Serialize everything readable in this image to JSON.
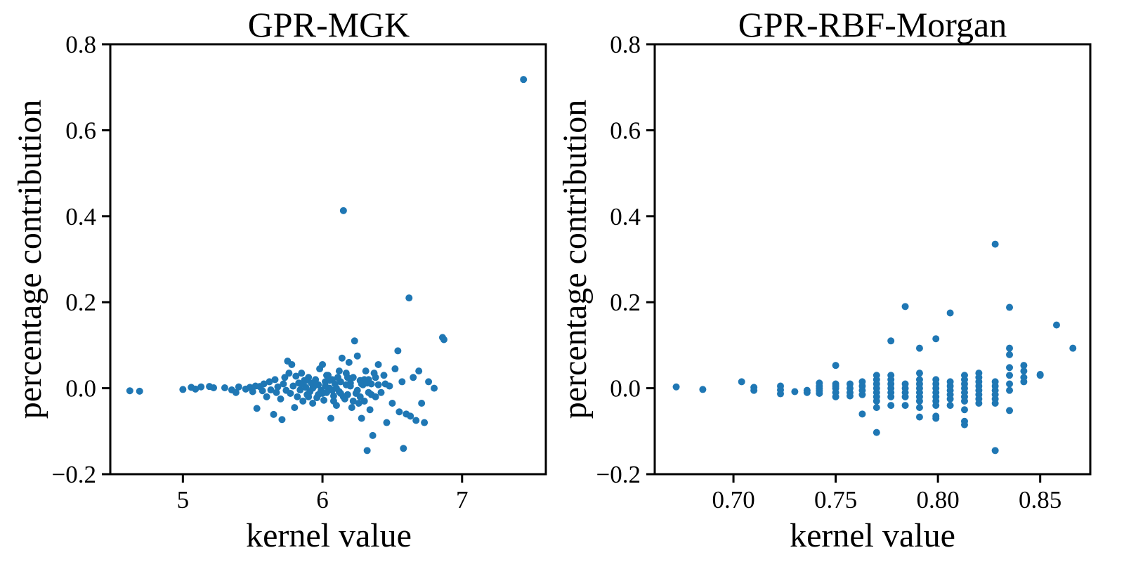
{
  "colors": {
    "marker": "#1f77b4",
    "axes": "#000000",
    "background": "#ffffff"
  },
  "chart_data": [
    {
      "type": "scatter",
      "title": "GPR-MGK",
      "xlabel": "kernel value",
      "ylabel": "percentage contribution",
      "xlim": [
        4.48,
        7.6
      ],
      "ylim": [
        -0.2,
        0.8
      ],
      "xticks": [
        5,
        6,
        7
      ],
      "xtick_labels": [
        "5",
        "6",
        "7"
      ],
      "yticks": [
        -0.2,
        0.0,
        0.2,
        0.4,
        0.6,
        0.8
      ],
      "ytick_labels": [
        "−0.2",
        "0.0",
        "0.2",
        "0.4",
        "0.6",
        "0.8"
      ],
      "grid": false,
      "points": [
        [
          4.62,
          -0.006
        ],
        [
          4.69,
          -0.007
        ],
        [
          5.0,
          -0.003
        ],
        [
          5.06,
          0.002
        ],
        [
          5.09,
          -0.002
        ],
        [
          5.13,
          0.003
        ],
        [
          5.19,
          0.004
        ],
        [
          5.22,
          0.001
        ],
        [
          5.3,
          0.001
        ],
        [
          5.35,
          -0.004
        ],
        [
          5.38,
          -0.01
        ],
        [
          5.4,
          0.003
        ],
        [
          5.45,
          -0.002
        ],
        [
          5.48,
          0.002
        ],
        [
          5.5,
          -0.008
        ],
        [
          5.52,
          0.005
        ],
        [
          5.53,
          -0.047
        ],
        [
          5.55,
          0.004
        ],
        [
          5.57,
          -0.006
        ],
        [
          5.58,
          0.01
        ],
        [
          5.6,
          -0.02
        ],
        [
          5.62,
          0.015
        ],
        [
          5.63,
          -0.004
        ],
        [
          5.65,
          -0.061
        ],
        [
          5.66,
          0.02
        ],
        [
          5.67,
          -0.01
        ],
        [
          5.68,
          0.003
        ],
        [
          5.7,
          -0.025
        ],
        [
          5.71,
          -0.073
        ],
        [
          5.72,
          0.01
        ],
        [
          5.73,
          0.025
        ],
        [
          5.74,
          -0.005
        ],
        [
          5.75,
          0.063
        ],
        [
          5.76,
          0.035
        ],
        [
          5.77,
          -0.012
        ],
        [
          5.78,
          0.055
        ],
        [
          5.79,
          0.005
        ],
        [
          5.8,
          -0.045
        ],
        [
          5.81,
          0.028
        ],
        [
          5.82,
          -0.02
        ],
        [
          5.83,
          0.012
        ],
        [
          5.84,
          -0.004
        ],
        [
          5.85,
          0.035
        ],
        [
          5.86,
          -0.03
        ],
        [
          5.87,
          0.018
        ],
        [
          5.88,
          0.002
        ],
        [
          5.89,
          -0.015
        ],
        [
          5.9,
          0.025
        ],
        [
          5.91,
          -0.008
        ],
        [
          5.92,
          0.012
        ],
        [
          5.93,
          -0.035
        ],
        [
          5.94,
          0.005
        ],
        [
          5.95,
          0.02
        ],
        [
          5.96,
          -0.022
        ],
        [
          5.97,
          0.008
        ],
        [
          5.98,
          0.045
        ],
        [
          5.99,
          -0.005
        ],
        [
          6.0,
          0.055
        ],
        [
          6.01,
          -0.028
        ],
        [
          6.02,
          0.015
        ],
        [
          6.03,
          -0.01
        ],
        [
          6.04,
          0.03
        ],
        [
          6.05,
          0.0
        ],
        [
          6.06,
          -0.07
        ],
        [
          6.07,
          0.02
        ],
        [
          6.08,
          -0.018
        ],
        [
          6.09,
          0.01
        ],
        [
          6.1,
          -0.04
        ],
        [
          6.11,
          0.025
        ],
        [
          6.12,
          -0.008
        ],
        [
          6.13,
          0.015
        ],
        [
          6.14,
          0.07
        ],
        [
          6.15,
          0.413
        ],
        [
          6.16,
          -0.025
        ],
        [
          6.17,
          0.035
        ],
        [
          6.18,
          -0.015
        ],
        [
          6.19,
          0.06
        ],
        [
          6.2,
          0.005
        ],
        [
          6.21,
          -0.045
        ],
        [
          6.22,
          0.025
        ],
        [
          6.23,
          0.11
        ],
        [
          6.24,
          -0.012
        ],
        [
          6.25,
          0.075
        ],
        [
          6.26,
          -0.035
        ],
        [
          6.27,
          0.018
        ],
        [
          6.28,
          -0.07
        ],
        [
          6.29,
          0.008
        ],
        [
          6.3,
          -0.03
        ],
        [
          6.31,
          0.04
        ],
        [
          6.32,
          -0.145
        ],
        [
          6.33,
          0.02
        ],
        [
          6.34,
          -0.05
        ],
        [
          6.35,
          0.01
        ],
        [
          6.36,
          -0.11
        ],
        [
          6.37,
          0.035
        ],
        [
          6.38,
          -0.02
        ],
        [
          6.4,
          0.055
        ],
        [
          6.42,
          -0.01
        ],
        [
          6.44,
          0.03
        ],
        [
          6.46,
          -0.08
        ],
        [
          6.48,
          0.005
        ],
        [
          6.5,
          -0.035
        ],
        [
          6.52,
          0.045
        ],
        [
          6.54,
          0.087
        ],
        [
          6.55,
          -0.055
        ],
        [
          6.57,
          0.015
        ],
        [
          6.58,
          -0.14
        ],
        [
          6.6,
          -0.06
        ],
        [
          6.62,
          0.21
        ],
        [
          6.63,
          -0.065
        ],
        [
          6.65,
          0.025
        ],
        [
          6.67,
          -0.075
        ],
        [
          6.69,
          0.04
        ],
        [
          6.71,
          -0.035
        ],
        [
          6.73,
          -0.08
        ],
        [
          6.76,
          0.015
        ],
        [
          6.8,
          0.0
        ],
        [
          6.86,
          0.118
        ],
        [
          6.87,
          0.113
        ],
        [
          7.44,
          0.718
        ],
        [
          5.95,
          0.01
        ],
        [
          6.0,
          -0.012
        ],
        [
          6.05,
          0.018
        ],
        [
          6.1,
          0.0
        ],
        [
          6.15,
          -0.02
        ],
        [
          6.2,
          0.012
        ],
        [
          6.25,
          -0.005
        ],
        [
          6.3,
          0.02
        ],
        [
          6.35,
          -0.015
        ],
        [
          6.4,
          0.008
        ],
        [
          5.9,
          -0.02
        ],
        [
          5.85,
          0.01
        ],
        [
          6.02,
          0.005
        ],
        [
          6.08,
          -0.03
        ],
        [
          6.12,
          0.04
        ],
        [
          6.18,
          0.025
        ],
        [
          6.22,
          -0.03
        ],
        [
          6.28,
          0.01
        ],
        [
          6.33,
          -0.01
        ],
        [
          5.97,
          -0.015
        ],
        [
          6.03,
          0.03
        ],
        [
          6.07,
          -0.005
        ],
        [
          6.13,
          -0.012
        ],
        [
          6.17,
          0.008
        ],
        [
          6.27,
          -0.02
        ],
        [
          6.32,
          0.012
        ],
        [
          6.38,
          0.025
        ],
        [
          5.88,
          0.018
        ],
        [
          5.93,
          0.0
        ],
        [
          6.45,
          0.01
        ]
      ]
    },
    {
      "type": "scatter",
      "title": "GPR-RBF-Morgan",
      "xlabel": "kernel value",
      "ylabel": "percentage contribution",
      "xlim": [
        0.6615,
        0.8745
      ],
      "ylim": [
        -0.2,
        0.8
      ],
      "xticks": [
        0.7,
        0.75,
        0.8,
        0.85
      ],
      "xtick_labels": [
        "0.70",
        "0.75",
        "0.80",
        "0.85"
      ],
      "yticks": [
        -0.2,
        0.0,
        0.2,
        0.4,
        0.6,
        0.8
      ],
      "ytick_labels": [
        "−0.2",
        "0.0",
        "0.2",
        "0.4",
        "0.6",
        "0.8"
      ],
      "grid": false,
      "points": [
        [
          0.672,
          0.003
        ],
        [
          0.685,
          -0.003
        ],
        [
          0.704,
          0.015
        ],
        [
          0.71,
          0.002
        ],
        [
          0.71,
          -0.005
        ],
        [
          0.723,
          0.005
        ],
        [
          0.723,
          -0.004
        ],
        [
          0.723,
          -0.013
        ],
        [
          0.73,
          -0.008
        ],
        [
          0.736,
          -0.005
        ],
        [
          0.736,
          -0.01
        ],
        [
          0.742,
          0.012
        ],
        [
          0.742,
          0.0
        ],
        [
          0.742,
          -0.012
        ],
        [
          0.742,
          0.005
        ],
        [
          0.742,
          -0.006
        ],
        [
          0.75,
          0.053
        ],
        [
          0.75,
          0.01
        ],
        [
          0.75,
          0.0
        ],
        [
          0.75,
          -0.01
        ],
        [
          0.75,
          -0.02
        ],
        [
          0.75,
          0.005
        ],
        [
          0.757,
          0.01
        ],
        [
          0.757,
          0.0
        ],
        [
          0.757,
          -0.01
        ],
        [
          0.757,
          -0.018
        ],
        [
          0.763,
          0.015
        ],
        [
          0.763,
          0.005
        ],
        [
          0.763,
          -0.005
        ],
        [
          0.763,
          -0.015
        ],
        [
          0.763,
          -0.06
        ],
        [
          0.77,
          0.03
        ],
        [
          0.77,
          0.02
        ],
        [
          0.77,
          0.01
        ],
        [
          0.77,
          0.0
        ],
        [
          0.77,
          -0.01
        ],
        [
          0.77,
          -0.02
        ],
        [
          0.77,
          -0.03
        ],
        [
          0.77,
          -0.045
        ],
        [
          0.77,
          -0.103
        ],
        [
          0.777,
          0.11
        ],
        [
          0.777,
          0.03
        ],
        [
          0.777,
          0.02
        ],
        [
          0.777,
          0.01
        ],
        [
          0.777,
          0.0
        ],
        [
          0.777,
          -0.01
        ],
        [
          0.777,
          -0.02
        ],
        [
          0.777,
          -0.04
        ],
        [
          0.784,
          0.19
        ],
        [
          0.784,
          0.01
        ],
        [
          0.784,
          0.0
        ],
        [
          0.784,
          -0.01
        ],
        [
          0.784,
          -0.02
        ],
        [
          0.784,
          -0.04
        ],
        [
          0.791,
          0.093
        ],
        [
          0.791,
          0.035
        ],
        [
          0.791,
          0.02
        ],
        [
          0.791,
          0.01
        ],
        [
          0.791,
          0.0
        ],
        [
          0.791,
          -0.01
        ],
        [
          0.791,
          -0.02
        ],
        [
          0.791,
          -0.03
        ],
        [
          0.791,
          -0.045
        ],
        [
          0.791,
          -0.067
        ],
        [
          0.799,
          0.115
        ],
        [
          0.799,
          0.02
        ],
        [
          0.799,
          0.01
        ],
        [
          0.799,
          0.0
        ],
        [
          0.799,
          -0.01
        ],
        [
          0.799,
          -0.02
        ],
        [
          0.799,
          -0.03
        ],
        [
          0.799,
          -0.04
        ],
        [
          0.799,
          -0.065
        ],
        [
          0.799,
          -0.07
        ],
        [
          0.806,
          0.175
        ],
        [
          0.806,
          0.015
        ],
        [
          0.806,
          0.005
        ],
        [
          0.806,
          -0.005
        ],
        [
          0.806,
          -0.015
        ],
        [
          0.806,
          -0.025
        ],
        [
          0.806,
          -0.04
        ],
        [
          0.813,
          0.03
        ],
        [
          0.813,
          0.02
        ],
        [
          0.813,
          0.01
        ],
        [
          0.813,
          0.0
        ],
        [
          0.813,
          -0.01
        ],
        [
          0.813,
          -0.02
        ],
        [
          0.813,
          -0.03
        ],
        [
          0.813,
          -0.05
        ],
        [
          0.813,
          -0.077
        ],
        [
          0.813,
          -0.085
        ],
        [
          0.82,
          0.035
        ],
        [
          0.82,
          0.025
        ],
        [
          0.82,
          0.015
        ],
        [
          0.82,
          0.005
        ],
        [
          0.82,
          -0.005
        ],
        [
          0.82,
          -0.015
        ],
        [
          0.82,
          -0.025
        ],
        [
          0.82,
          -0.035
        ],
        [
          0.828,
          0.335
        ],
        [
          0.828,
          0.015
        ],
        [
          0.828,
          0.005
        ],
        [
          0.828,
          -0.005
        ],
        [
          0.828,
          -0.015
        ],
        [
          0.828,
          -0.025
        ],
        [
          0.828,
          -0.035
        ],
        [
          0.828,
          -0.145
        ],
        [
          0.835,
          0.188
        ],
        [
          0.835,
          0.093
        ],
        [
          0.835,
          0.078
        ],
        [
          0.835,
          0.048
        ],
        [
          0.835,
          0.03
        ],
        [
          0.835,
          0.01
        ],
        [
          0.835,
          -0.005
        ],
        [
          0.835,
          -0.052
        ],
        [
          0.842,
          0.053
        ],
        [
          0.842,
          0.04
        ],
        [
          0.842,
          0.025
        ],
        [
          0.842,
          0.015
        ],
        [
          0.85,
          0.032
        ],
        [
          0.85,
          0.03
        ],
        [
          0.858,
          0.147
        ],
        [
          0.866,
          0.093
        ]
      ]
    }
  ]
}
